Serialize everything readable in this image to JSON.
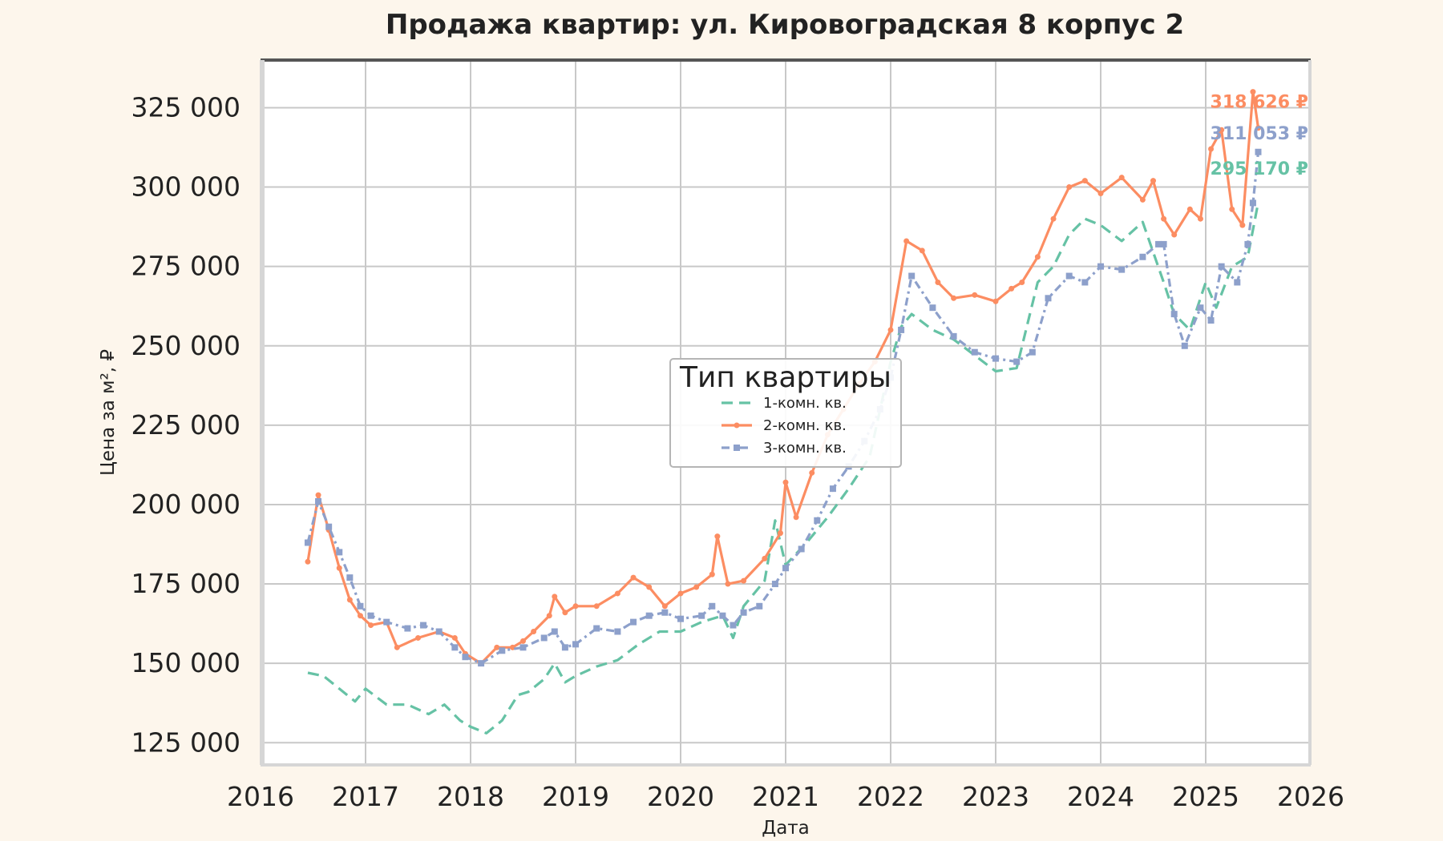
{
  "chart_data": {
    "type": "line",
    "title": "Продажа квартир: ул. Кировоградская 8 корпус 2",
    "xlabel": "Дата",
    "ylabel": "Цена за м², ₽",
    "xlim": [
      2016,
      2026
    ],
    "ylim": [
      118000,
      340000
    ],
    "x_ticks": [
      2016,
      2017,
      2018,
      2019,
      2020,
      2021,
      2022,
      2023,
      2024,
      2025,
      2026
    ],
    "x_tick_labels": [
      "2016",
      "2017",
      "2018",
      "2019",
      "2020",
      "2021",
      "2022",
      "2023",
      "2024",
      "2025",
      "2026"
    ],
    "y_ticks": [
      125000,
      150000,
      175000,
      200000,
      225000,
      250000,
      275000,
      300000,
      325000
    ],
    "y_tick_labels": [
      "125 000",
      "150 000",
      "175 000",
      "200 000",
      "225 000",
      "250 000",
      "275 000",
      "300 000",
      "325 000"
    ],
    "grid": true,
    "legend": {
      "title": "Тип квартиры",
      "placement": "center"
    },
    "series": [
      {
        "name": "1-комн. кв.",
        "color": "#66c2a5",
        "style": "dashed",
        "x": [
          2016.45,
          2016.6,
          2016.75,
          2016.9,
          2017.0,
          2017.2,
          2017.4,
          2017.6,
          2017.75,
          2017.9,
          2018.0,
          2018.15,
          2018.3,
          2018.45,
          2018.55,
          2018.7,
          2018.8,
          2018.9,
          2019.0,
          2019.2,
          2019.4,
          2019.6,
          2019.8,
          2020.0,
          2020.2,
          2020.4,
          2020.5,
          2020.6,
          2020.8,
          2020.9,
          2021.0,
          2021.2,
          2021.4,
          2021.6,
          2021.8,
          2022.0,
          2022.1,
          2022.2,
          2022.4,
          2022.6,
          2022.8,
          2023.0,
          2023.2,
          2023.4,
          2023.55,
          2023.7,
          2023.85,
          2024.0,
          2024.2,
          2024.4,
          2024.6,
          2024.7,
          2024.85,
          2025.0,
          2025.1,
          2025.25,
          2025.4,
          2025.5
        ],
        "values": [
          147000,
          146000,
          142000,
          138000,
          142000,
          137000,
          137000,
          134000,
          137000,
          132000,
          130000,
          128000,
          132000,
          140000,
          141000,
          145000,
          150000,
          144000,
          146000,
          149000,
          151000,
          156000,
          160000,
          160000,
          163000,
          165000,
          158000,
          168000,
          176000,
          195000,
          181000,
          188000,
          196000,
          205000,
          215000,
          245000,
          256000,
          260000,
          255000,
          252000,
          247000,
          242000,
          243000,
          270000,
          275000,
          285000,
          290000,
          288000,
          283000,
          289000,
          270000,
          260000,
          255000,
          270000,
          262000,
          275000,
          278000,
          295170
        ]
      },
      {
        "name": "2-комн. кв.",
        "color": "#fc8d62",
        "style": "solid-markers",
        "x": [
          2016.45,
          2016.55,
          2016.65,
          2016.75,
          2016.85,
          2016.95,
          2017.05,
          2017.2,
          2017.3,
          2017.5,
          2017.7,
          2017.85,
          2017.95,
          2018.1,
          2018.25,
          2018.4,
          2018.5,
          2018.6,
          2018.75,
          2018.8,
          2018.9,
          2019.0,
          2019.2,
          2019.4,
          2019.55,
          2019.7,
          2019.85,
          2020.0,
          2020.15,
          2020.3,
          2020.35,
          2020.45,
          2020.6,
          2020.8,
          2020.95,
          2021.0,
          2021.1,
          2021.25,
          2021.4,
          2021.55,
          2021.7,
          2021.85,
          2022.0,
          2022.15,
          2022.3,
          2022.45,
          2022.6,
          2022.8,
          2023.0,
          2023.15,
          2023.25,
          2023.4,
          2023.55,
          2023.7,
          2023.85,
          2024.0,
          2024.2,
          2024.4,
          2024.5,
          2024.6,
          2024.7,
          2024.85,
          2024.95,
          2025.05,
          2025.15,
          2025.25,
          2025.35,
          2025.45,
          2025.5
        ],
        "values": [
          182000,
          203000,
          192000,
          180000,
          170000,
          165000,
          162000,
          163000,
          155000,
          158000,
          160000,
          158000,
          153000,
          150000,
          155000,
          155000,
          157000,
          160000,
          165000,
          171000,
          166000,
          168000,
          168000,
          172000,
          177000,
          174000,
          168000,
          172000,
          174000,
          178000,
          190000,
          175000,
          176000,
          183000,
          191000,
          207000,
          196000,
          210000,
          222000,
          230000,
          238000,
          245000,
          255000,
          283000,
          280000,
          270000,
          265000,
          266000,
          264000,
          268000,
          270000,
          278000,
          290000,
          300000,
          302000,
          298000,
          303000,
          296000,
          302000,
          290000,
          285000,
          293000,
          290000,
          312000,
          318000,
          293000,
          288000,
          330000,
          318626
        ]
      },
      {
        "name": "3-комн. кв.",
        "color": "#8da0cb",
        "style": "dashdot-markers",
        "x": [
          2016.45,
          2016.55,
          2016.65,
          2016.75,
          2016.85,
          2016.95,
          2017.05,
          2017.2,
          2017.4,
          2017.55,
          2017.7,
          2017.85,
          2017.95,
          2018.1,
          2018.3,
          2018.5,
          2018.7,
          2018.8,
          2018.9,
          2019.0,
          2019.2,
          2019.4,
          2019.55,
          2019.7,
          2019.85,
          2020.0,
          2020.2,
          2020.3,
          2020.4,
          2020.5,
          2020.6,
          2020.75,
          2020.9,
          2021.0,
          2021.15,
          2021.3,
          2021.45,
          2021.6,
          2021.75,
          2021.9,
          2022.0,
          2022.1,
          2022.2,
          2022.4,
          2022.6,
          2022.8,
          2023.0,
          2023.2,
          2023.35,
          2023.5,
          2023.7,
          2023.85,
          2024.0,
          2024.2,
          2024.4,
          2024.55,
          2024.6,
          2024.7,
          2024.8,
          2024.95,
          2025.05,
          2025.15,
          2025.3,
          2025.4,
          2025.45,
          2025.5
        ],
        "values": [
          188000,
          201000,
          193000,
          185000,
          177000,
          168000,
          165000,
          163000,
          161000,
          162000,
          160000,
          155000,
          152000,
          150000,
          154000,
          155000,
          158000,
          160000,
          155000,
          156000,
          161000,
          160000,
          163000,
          165000,
          166000,
          164000,
          165000,
          168000,
          165000,
          162000,
          166000,
          168000,
          175000,
          180000,
          186000,
          195000,
          205000,
          212000,
          220000,
          230000,
          240000,
          255000,
          272000,
          262000,
          253000,
          248000,
          246000,
          245000,
          248000,
          265000,
          272000,
          270000,
          275000,
          274000,
          278000,
          282000,
          282000,
          260000,
          250000,
          262000,
          258000,
          275000,
          270000,
          282000,
          295000,
          311053
        ]
      }
    ],
    "end_labels": [
      {
        "text": "318 626 ₽",
        "series": "2-комн. кв.",
        "color": "#fc8d62",
        "value": 318626
      },
      {
        "text": "311 053 ₽",
        "series": "3-комн. кв.",
        "color": "#8da0cb",
        "value": 311053
      },
      {
        "text": "295 170 ₽",
        "series": "1-комн. кв.",
        "color": "#66c2a5",
        "value": 295170
      }
    ]
  }
}
